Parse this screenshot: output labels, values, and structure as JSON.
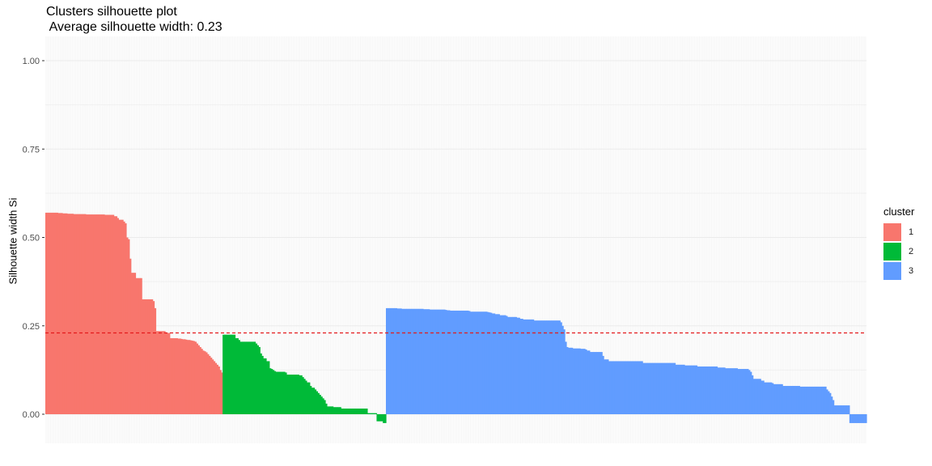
{
  "chart_data": {
    "type": "bar",
    "title": "Clusters silhouette plot",
    "subtitle": " Average silhouette width: 0.23",
    "xlabel": "",
    "ylabel": "Silhouette width Si",
    "ylim": [
      -0.05,
      1.0
    ],
    "yticks": [
      "0.00",
      "0.25",
      "0.50",
      "0.75",
      "1.00"
    ],
    "grid": true,
    "legend": {
      "title": "cluster",
      "position": "right"
    },
    "reference_line": {
      "value": 0.23,
      "style": "dashed",
      "color": "#e41a1c"
    },
    "series": [
      {
        "name": "1",
        "color": "#F8766D",
        "values": [
          0.57,
          0.57,
          0.57,
          0.57,
          0.57,
          0.57,
          0.57,
          0.57,
          0.569,
          0.569,
          0.569,
          0.568,
          0.568,
          0.568,
          0.567,
          0.567,
          0.567,
          0.567,
          0.566,
          0.566,
          0.566,
          0.566,
          0.566,
          0.566,
          0.566,
          0.566,
          0.565,
          0.565,
          0.565,
          0.565,
          0.565,
          0.565,
          0.565,
          0.565,
          0.565,
          0.565,
          0.565,
          0.565,
          0.564,
          0.564,
          0.564,
          0.564,
          0.564,
          0.564,
          0.56,
          0.56,
          0.555,
          0.55,
          0.55,
          0.55,
          0.545,
          0.54,
          0.5,
          0.495,
          0.44,
          0.4,
          0.4,
          0.4,
          0.385,
          0.385,
          0.385,
          0.385,
          0.325,
          0.325,
          0.325,
          0.325,
          0.325,
          0.325,
          0.325,
          0.32,
          0.3,
          0.235,
          0.235,
          0.235,
          0.235,
          0.235,
          0.235,
          0.23,
          0.23,
          0.23,
          0.215,
          0.215,
          0.215,
          0.215,
          0.215,
          0.214,
          0.214,
          0.213,
          0.212,
          0.212,
          0.211,
          0.21,
          0.21,
          0.209,
          0.208,
          0.207,
          0.205,
          0.2,
          0.195,
          0.19,
          0.185,
          0.18,
          0.178,
          0.175,
          0.17,
          0.165,
          0.16,
          0.155,
          0.15,
          0.145,
          0.14,
          0.135,
          0.125,
          0.118
        ]
      },
      {
        "name": "2",
        "color": "#00BA38",
        "values": [
          0.225,
          0.225,
          0.225,
          0.225,
          0.225,
          0.225,
          0.225,
          0.225,
          0.215,
          0.215,
          0.21,
          0.205,
          0.205,
          0.205,
          0.205,
          0.205,
          0.205,
          0.205,
          0.205,
          0.205,
          0.205,
          0.2,
          0.195,
          0.19,
          0.172,
          0.165,
          0.158,
          0.158,
          0.15,
          0.15,
          0.13,
          0.128,
          0.125,
          0.122,
          0.12,
          0.12,
          0.12,
          0.12,
          0.12,
          0.12,
          0.118,
          0.112,
          0.112,
          0.112,
          0.112,
          0.112,
          0.112,
          0.112,
          0.112,
          0.11,
          0.11,
          0.105,
          0.1,
          0.095,
          0.09,
          0.09,
          0.08,
          0.075,
          0.075,
          0.07,
          0.065,
          0.06,
          0.055,
          0.05,
          0.045,
          0.04,
          0.03,
          0.022,
          0.022,
          0.022,
          0.022,
          0.02,
          0.02,
          0.02,
          0.02,
          0.02,
          0.016,
          0.016,
          0.016,
          0.016,
          0.016,
          0.016,
          0.016,
          0.016,
          0.016,
          0.016,
          0.016,
          0.016,
          0.016,
          0.016,
          0.016,
          0.016,
          0.016,
          0.003,
          0.003,
          0.003,
          0.003,
          0.003,
          0.003,
          -0.02,
          -0.02,
          -0.02,
          -0.02,
          -0.025,
          -0.025
        ]
      },
      {
        "name": "3",
        "color": "#619CFF",
        "values": [
          0.3,
          0.3,
          0.3,
          0.3,
          0.3,
          0.3,
          0.3,
          0.299,
          0.299,
          0.299,
          0.298,
          0.298,
          0.298,
          0.298,
          0.298,
          0.298,
          0.298,
          0.298,
          0.298,
          0.298,
          0.298,
          0.298,
          0.298,
          0.298,
          0.297,
          0.297,
          0.297,
          0.297,
          0.296,
          0.296,
          0.296,
          0.296,
          0.296,
          0.296,
          0.296,
          0.296,
          0.296,
          0.296,
          0.295,
          0.294,
          0.294,
          0.293,
          0.293,
          0.293,
          0.293,
          0.293,
          0.293,
          0.293,
          0.293,
          0.293,
          0.293,
          0.293,
          0.293,
          0.292,
          0.29,
          0.29,
          0.29,
          0.29,
          0.29,
          0.29,
          0.29,
          0.29,
          0.29,
          0.29,
          0.29,
          0.289,
          0.288,
          0.287,
          0.285,
          0.285,
          0.283,
          0.283,
          0.283,
          0.28,
          0.28,
          0.28,
          0.28,
          0.278,
          0.275,
          0.275,
          0.275,
          0.275,
          0.275,
          0.275,
          0.273,
          0.273,
          0.27,
          0.27,
          0.268,
          0.268,
          0.268,
          0.268,
          0.268,
          0.268,
          0.268,
          0.265,
          0.265,
          0.265,
          0.265,
          0.265,
          0.265,
          0.265,
          0.265,
          0.265,
          0.265,
          0.265,
          0.265,
          0.265,
          0.265,
          0.265,
          0.265,
          0.265,
          0.26,
          0.25,
          0.24,
          0.205,
          0.19,
          0.188,
          0.188,
          0.188,
          0.186,
          0.186,
          0.186,
          0.186,
          0.186,
          0.185,
          0.185,
          0.185,
          0.183,
          0.18,
          0.18,
          0.176,
          0.176,
          0.176,
          0.176,
          0.176,
          0.176,
          0.176,
          0.176,
          0.165,
          0.155,
          0.155,
          0.155,
          0.15,
          0.15,
          0.15,
          0.15,
          0.15,
          0.15,
          0.15,
          0.15,
          0.15,
          0.15,
          0.15,
          0.15,
          0.15,
          0.15,
          0.15,
          0.15,
          0.15,
          0.15,
          0.15,
          0.15,
          0.15,
          0.15,
          0.145,
          0.145,
          0.145,
          0.145,
          0.145,
          0.145,
          0.145,
          0.145,
          0.145,
          0.145,
          0.145,
          0.145,
          0.145,
          0.145,
          0.145,
          0.145,
          0.145,
          0.145,
          0.145,
          0.145,
          0.145,
          0.14,
          0.14,
          0.14,
          0.14,
          0.14,
          0.14,
          0.138,
          0.138,
          0.138,
          0.138,
          0.138,
          0.138,
          0.138,
          0.138,
          0.135,
          0.135,
          0.135,
          0.135,
          0.135,
          0.135,
          0.135,
          0.135,
          0.135,
          0.135,
          0.135,
          0.135,
          0.135,
          0.132,
          0.132,
          0.132,
          0.132,
          0.132,
          0.13,
          0.13,
          0.13,
          0.13,
          0.13,
          0.13,
          0.13,
          0.13,
          0.128,
          0.128,
          0.128,
          0.128,
          0.128,
          0.128,
          0.128,
          0.125,
          0.12,
          0.11,
          0.1,
          0.1,
          0.1,
          0.1,
          0.1,
          0.095,
          0.095,
          0.09,
          0.09,
          0.09,
          0.09,
          0.09,
          0.088,
          0.085,
          0.085,
          0.085,
          0.085,
          0.085,
          0.085,
          0.08,
          0.08,
          0.08,
          0.08,
          0.08,
          0.08,
          0.08,
          0.08,
          0.08,
          0.08,
          0.08,
          0.078,
          0.078,
          0.078,
          0.078,
          0.078,
          0.078,
          0.078,
          0.078,
          0.078,
          0.078,
          0.078,
          0.078,
          0.078,
          0.078,
          0.078,
          0.078,
          0.078,
          0.07,
          0.065,
          0.06,
          0.05,
          0.04,
          0.025,
          0.025,
          0.025,
          0.025,
          0.025,
          0.025,
          0.025,
          0.025,
          0.025,
          0.025,
          -0.025,
          -0.025,
          -0.025,
          -0.025,
          -0.025,
          -0.025,
          -0.025,
          -0.025,
          -0.025,
          -0.025,
          -0.025
        ]
      }
    ]
  }
}
